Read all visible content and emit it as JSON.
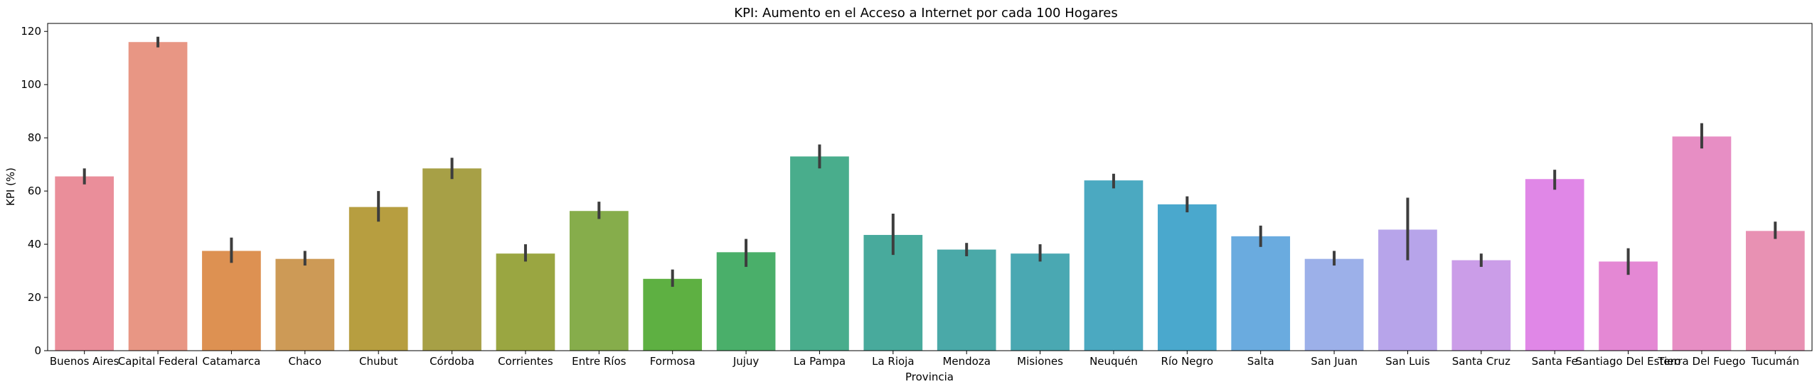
{
  "chart_data": {
    "type": "bar",
    "title": "KPI: Aumento en el Acceso a Internet por cada 100 Hogares",
    "xlabel": "Provincia",
    "ylabel": "KPI (%)",
    "ylim": [
      0,
      123
    ],
    "yticks": [
      0,
      20,
      40,
      60,
      80,
      100,
      120
    ],
    "grid": false,
    "categories": [
      "Buenos Aires",
      "Capital Federal",
      "Catamarca",
      "Chaco",
      "Chubut",
      "Córdoba",
      "Corrientes",
      "Entre Ríos",
      "Formosa",
      "Jujuy",
      "La Pampa",
      "La Rioja",
      "Mendoza",
      "Misiones",
      "Neuquén",
      "Río Negro",
      "Salta",
      "San Juan",
      "San Luis",
      "Santa Cruz",
      "Santa Fe",
      "Santiago Del Estero",
      "Tierra Del Fuego",
      "Tucumán"
    ],
    "values": [
      65.5,
      116,
      37.5,
      34.5,
      54,
      68.5,
      36.5,
      52.5,
      27,
      37,
      73,
      43.5,
      38,
      36.5,
      64,
      55,
      43,
      34.5,
      45.5,
      34,
      64.5,
      33.5,
      80.5,
      45
    ],
    "error_low": [
      62.5,
      114,
      33,
      32,
      48.5,
      64.5,
      33.5,
      49.5,
      24,
      31.5,
      68.5,
      36,
      35.5,
      33.5,
      61,
      52,
      39,
      32,
      34,
      31.5,
      60.5,
      28.5,
      76,
      42
    ],
    "error_high": [
      68.5,
      118,
      42.5,
      37.5,
      60,
      72.5,
      40,
      56,
      30.5,
      42,
      77.5,
      51.5,
      40.5,
      40,
      66.5,
      58,
      47,
      37.5,
      57.5,
      36.5,
      68,
      38.5,
      85.5,
      48.5
    ],
    "colors": [
      "#ea8e9a",
      "#e89684",
      "#dd9152",
      "#cd9a56",
      "#b79e40",
      "#a7a046",
      "#9aa641",
      "#86ad4b",
      "#5eb042",
      "#4aaf6a",
      "#49ad8c",
      "#48aa9c",
      "#4aa9a8",
      "#4aa8b2",
      "#4ba9c1",
      "#4aa8cd",
      "#6aabdf",
      "#9cb0e9",
      "#b7a4ea",
      "#cb9de8",
      "#e087e7",
      "#e488d4",
      "#e78ec4",
      "#e891b3"
    ]
  }
}
